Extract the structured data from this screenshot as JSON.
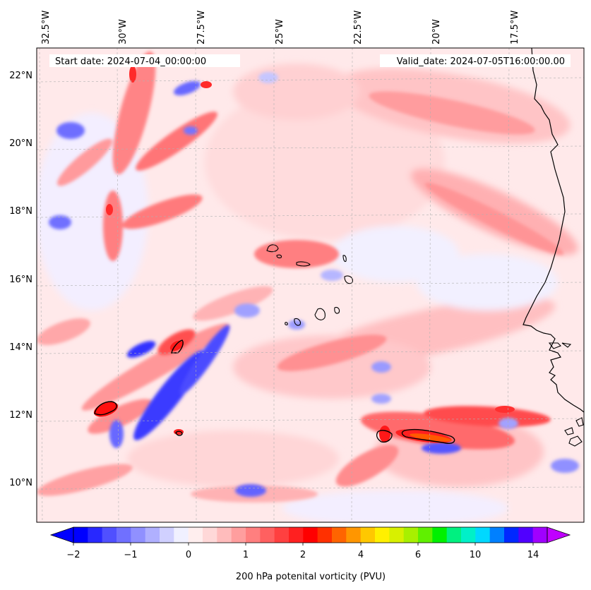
{
  "map": {
    "start_date": "Start date: 2024-07-04_00:00:00",
    "valid_date": "Valid_date: 2024-07-05T16:00:00.00",
    "lon_labels": [
      "32.5°W",
      "30°W",
      "27.5°W",
      "25°W",
      "22.5°W",
      "20°W",
      "17.5°W"
    ],
    "lat_labels": [
      "22°N",
      "20°N",
      "18°N",
      "16°N",
      "14°N",
      "12°N",
      "10°N"
    ],
    "lon_range": [
      -33.0,
      -15.5
    ],
    "lat_range": [
      8.8,
      22.8
    ],
    "gridlines": true,
    "colors": {
      "coast": "#000000",
      "grid": "#b0b0b0"
    }
  },
  "colorbar": {
    "label": "200 hPa potenital vorticity (PVU)",
    "tick_labels": [
      "−2",
      "−1",
      "0",
      "1",
      "2",
      "4",
      "6",
      "10",
      "14"
    ],
    "levels": [
      -2,
      -1.75,
      -1.5,
      -1.25,
      -1,
      -0.75,
      -0.5,
      -0.25,
      0,
      0.25,
      0.5,
      0.75,
      1,
      1.25,
      1.5,
      1.75,
      2,
      2.5,
      3,
      3.5,
      4,
      4.5,
      5,
      5.5,
      6,
      7,
      8,
      9,
      10,
      11,
      12,
      13,
      14,
      15
    ],
    "colors": [
      "#0000ff",
      "#2828ff",
      "#5050ff",
      "#7070ff",
      "#9090ff",
      "#b0b0ff",
      "#d0d0ff",
      "#f0f0ff",
      "#ffeeee",
      "#ffd8d8",
      "#ffbcbc",
      "#ff9e9e",
      "#ff7f7f",
      "#ff6060",
      "#ff4040",
      "#ff2020",
      "#ff0000",
      "#ff3000",
      "#ff6400",
      "#ff9600",
      "#ffc800",
      "#fff000",
      "#d8f000",
      "#a8f000",
      "#60f000",
      "#00f000",
      "#00f080",
      "#00f0c8",
      "#00d8ff",
      "#0080ff",
      "#0028ff",
      "#5000ff",
      "#a000ff"
    ],
    "extend_low_color": "#0000ff",
    "extend_high_color": "#c000ff"
  }
}
